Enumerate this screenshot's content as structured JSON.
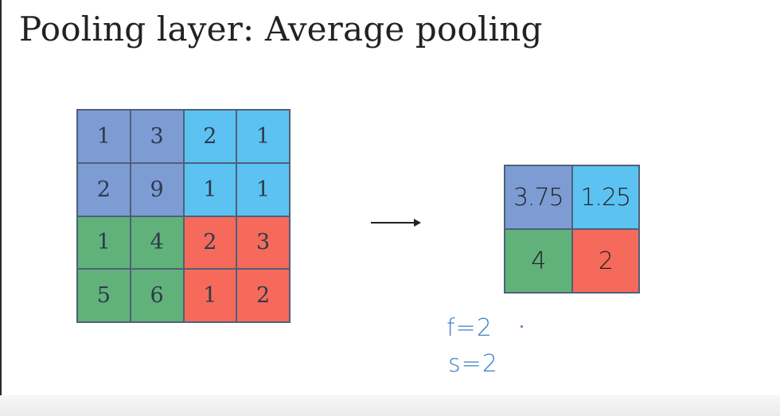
{
  "title": "Pooling layer: Average pooling",
  "input_matrix": {
    "rows": [
      [
        "1",
        "3",
        "2",
        "1"
      ],
      [
        "2",
        "9",
        "1",
        "1"
      ],
      [
        "1",
        "4",
        "2",
        "3"
      ],
      [
        "5",
        "6",
        "1",
        "2"
      ]
    ],
    "region_colors": [
      [
        "#7d9cd4",
        "#7d9cd4",
        "#5cc2f2",
        "#5cc2f2"
      ],
      [
        "#7d9cd4",
        "#7d9cd4",
        "#5cc2f2",
        "#5cc2f2"
      ],
      [
        "#61b27a",
        "#61b27a",
        "#f56a5b",
        "#f56a5b"
      ],
      [
        "#61b27a",
        "#61b27a",
        "#f56a5b",
        "#f56a5b"
      ]
    ]
  },
  "output_matrix": {
    "rows": [
      [
        "3.75",
        "1.25"
      ],
      [
        "4",
        "2"
      ]
    ],
    "region_colors": [
      [
        "#7d9cd4",
        "#5cc2f2"
      ],
      [
        "#61b27a",
        "#f56a5b"
      ]
    ]
  },
  "hyperparameters": {
    "filter": "f=2",
    "stride": "s=2"
  },
  "colors": {
    "annotation_ink": "#3d7fc4",
    "grid_line": "#4f6079"
  },
  "icons": {
    "arrow": "right-arrow-icon"
  }
}
